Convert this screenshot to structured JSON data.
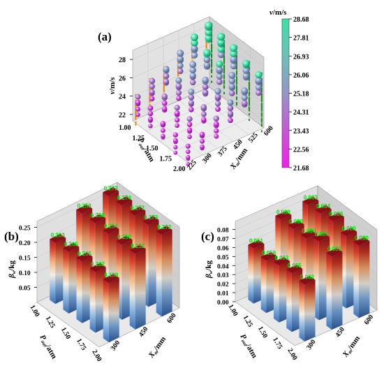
{
  "chart_data": [
    {
      "type": "scatter",
      "panel_label": "(a)",
      "xlabel_main": "P",
      "xlabel_sub": "out",
      "xlabel_unit": "/atm",
      "ylabel_main": "X",
      "ylabel_sub": "m",
      "ylabel_unit": "/mm",
      "zlabel_main": "v",
      "zlabel_unit": "/m/s",
      "x_ticks": [
        "1.00",
        "1.25",
        "1.50",
        "1.75",
        "2.00"
      ],
      "y_ticks": [
        "225",
        "300",
        "375",
        "450",
        "525",
        "600"
      ],
      "z_ticks": [
        "22",
        "24",
        "26",
        "28"
      ],
      "colorbar": {
        "title_main": "v",
        "title_unit": "/m/s",
        "ticks": [
          "28.68",
          "27.81",
          "26.93",
          "26.06",
          "25.18",
          "24.31",
          "23.43",
          "22.56",
          "21.68"
        ],
        "colors": [
          "#3be0a6",
          "#64c5b5",
          "#8a9ec5",
          "#a57ec9",
          "#c15bd0",
          "#e23ae0",
          "#f023ec"
        ]
      },
      "projections": {
        "left_wall": "#f08a00",
        "right_wall": "#1f8a1f"
      }
    },
    {
      "type": "bar",
      "panel_label": "(b)",
      "xlabel_main": "P",
      "xlabel_sub": "out",
      "xlabel_unit": "/atm",
      "ylabel_main": "X",
      "ylabel_sub": "m",
      "ylabel_unit": "/mm",
      "zlabel_main": "β",
      "zlabel_sub": "w",
      "zlabel_unit": "/kg",
      "x_ticks": [
        "1.00",
        "1.25",
        "1.50",
        "1.75",
        "2.00"
      ],
      "y_ticks": [
        "300",
        "450",
        "600"
      ],
      "z_ticks": [
        "0.05",
        "0.10",
        "0.15",
        "0.20",
        "0.25"
      ],
      "bars": [
        {
          "p": "1.00",
          "x": "300",
          "value": 0.203
        },
        {
          "p": "1.25",
          "x": "300",
          "value": 0.205
        },
        {
          "p": "1.50",
          "x": "300",
          "value": 0.205
        },
        {
          "p": "1.75",
          "x": "300",
          "value": 0.202
        },
        {
          "p": "2.00",
          "x": "300",
          "value": 0.198
        },
        {
          "p": "1.00",
          "x": "450",
          "value": 0.258
        },
        {
          "p": "1.25",
          "x": "450",
          "value": 0.258
        },
        {
          "p": "1.50",
          "x": "450",
          "value": 0.254
        },
        {
          "p": "1.75",
          "x": "450",
          "value": 0.25
        },
        {
          "p": "2.00",
          "x": "450",
          "value": 0.252
        },
        {
          "p": "1.00",
          "x": "600",
          "value": 0.273
        },
        {
          "p": "1.25",
          "x": "600",
          "value": 0.274
        },
        {
          "p": "1.50",
          "x": "600",
          "value": 0.272
        },
        {
          "p": "1.75",
          "x": "600",
          "value": 0.273
        },
        {
          "p": "2.00",
          "x": "600",
          "value": 0.272
        }
      ]
    },
    {
      "type": "bar",
      "panel_label": "(c)",
      "xlabel_main": "P",
      "xlabel_sub": "out",
      "xlabel_unit": "/atm",
      "ylabel_main": "X",
      "ylabel_sub": "m",
      "ylabel_unit": "/mm",
      "zlabel_main": "β",
      "zlabel_sub": "w",
      "zlabel_unit": "/kg",
      "x_ticks": [
        "1.00",
        "1.25",
        "1.50",
        "1.75",
        "2.00"
      ],
      "y_ticks": [
        "300",
        "450",
        "600"
      ],
      "z_ticks": [
        "0.00",
        "0.01",
        "0.02",
        "0.03",
        "0.04",
        "0.05",
        "0.06",
        "0.07",
        "0.08"
      ],
      "bars": [
        {
          "p": "1.00",
          "x": "300",
          "value": 0.061
        },
        {
          "p": "1.25",
          "x": "300",
          "value": 0.058
        },
        {
          "p": "1.50",
          "x": "300",
          "value": 0.063
        },
        {
          "p": "1.75",
          "x": "300",
          "value": 0.065
        },
        {
          "p": "2.00",
          "x": "300",
          "value": 0.063
        },
        {
          "p": "1.00",
          "x": "450",
          "value": 0.08
        },
        {
          "p": "1.25",
          "x": "450",
          "value": 0.08
        },
        {
          "p": "1.50",
          "x": "450",
          "value": 0.08
        },
        {
          "p": "1.75",
          "x": "450",
          "value": 0.087
        },
        {
          "p": "2.00",
          "x": "450",
          "value": 0.081
        },
        {
          "p": "1.00",
          "x": "600",
          "value": 0.083
        },
        {
          "p": "1.25",
          "x": "600",
          "value": 0.084
        },
        {
          "p": "1.50",
          "x": "600",
          "value": 0.086
        },
        {
          "p": "1.75",
          "x": "600",
          "value": 0.08
        },
        {
          "p": "2.00",
          "x": "600",
          "value": 0.08
        }
      ]
    }
  ]
}
